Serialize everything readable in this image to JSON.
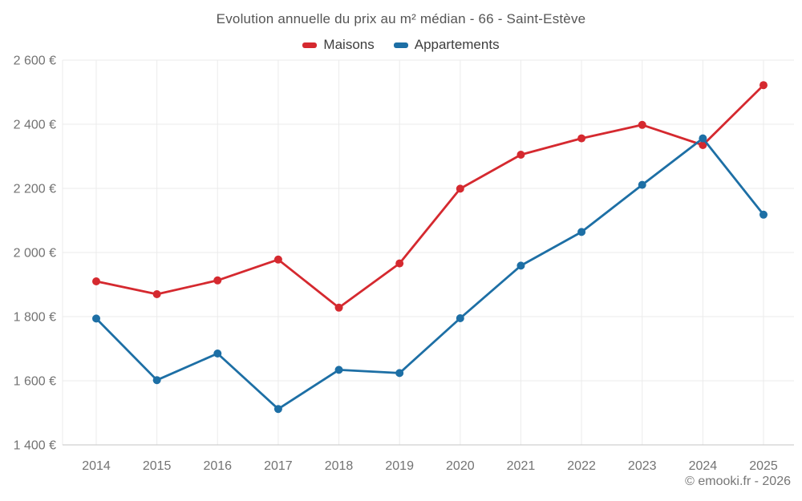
{
  "header": {
    "title": "Evolution annuelle du prix au m² médian - 66 - Saint-Estève"
  },
  "footer": {
    "copyright": "© emooki.fr - 2026"
  },
  "colors": {
    "maisons": "#d5292f",
    "appartements": "#1d6fa5",
    "gridline": "#ebebeb",
    "axis_line": "#c6c6c6",
    "tick_text": "#737373"
  },
  "chart_data": {
    "type": "line",
    "title": "Evolution annuelle du prix au m² médian - 66 - Saint-Estève",
    "categories": [
      "2014",
      "2015",
      "2016",
      "2017",
      "2018",
      "2019",
      "2020",
      "2021",
      "2022",
      "2023",
      "2024",
      "2025"
    ],
    "series": [
      {
        "name": "Maisons",
        "color": "#d5292f",
        "values": [
          1910,
          1870,
          1913,
          1978,
          1828,
          1966,
          2199,
          2305,
          2356,
          2398,
          2335,
          2522
        ]
      },
      {
        "name": "Appartements",
        "color": "#1d6fa5",
        "values": [
          1794,
          1602,
          1685,
          1512,
          1634,
          1624,
          1795,
          1959,
          2064,
          2211,
          2356,
          2118
        ]
      }
    ],
    "xlabel": "",
    "ylabel": "",
    "ylim": [
      1400,
      2600
    ],
    "ytick_step": 200,
    "ytick_labels": [
      "1 400 €",
      "1 600 €",
      "1 800 €",
      "2 000 €",
      "2 200 €",
      "2 400 €",
      "2 600 €"
    ],
    "grid": true,
    "legend_position": "top",
    "unit": "€"
  }
}
